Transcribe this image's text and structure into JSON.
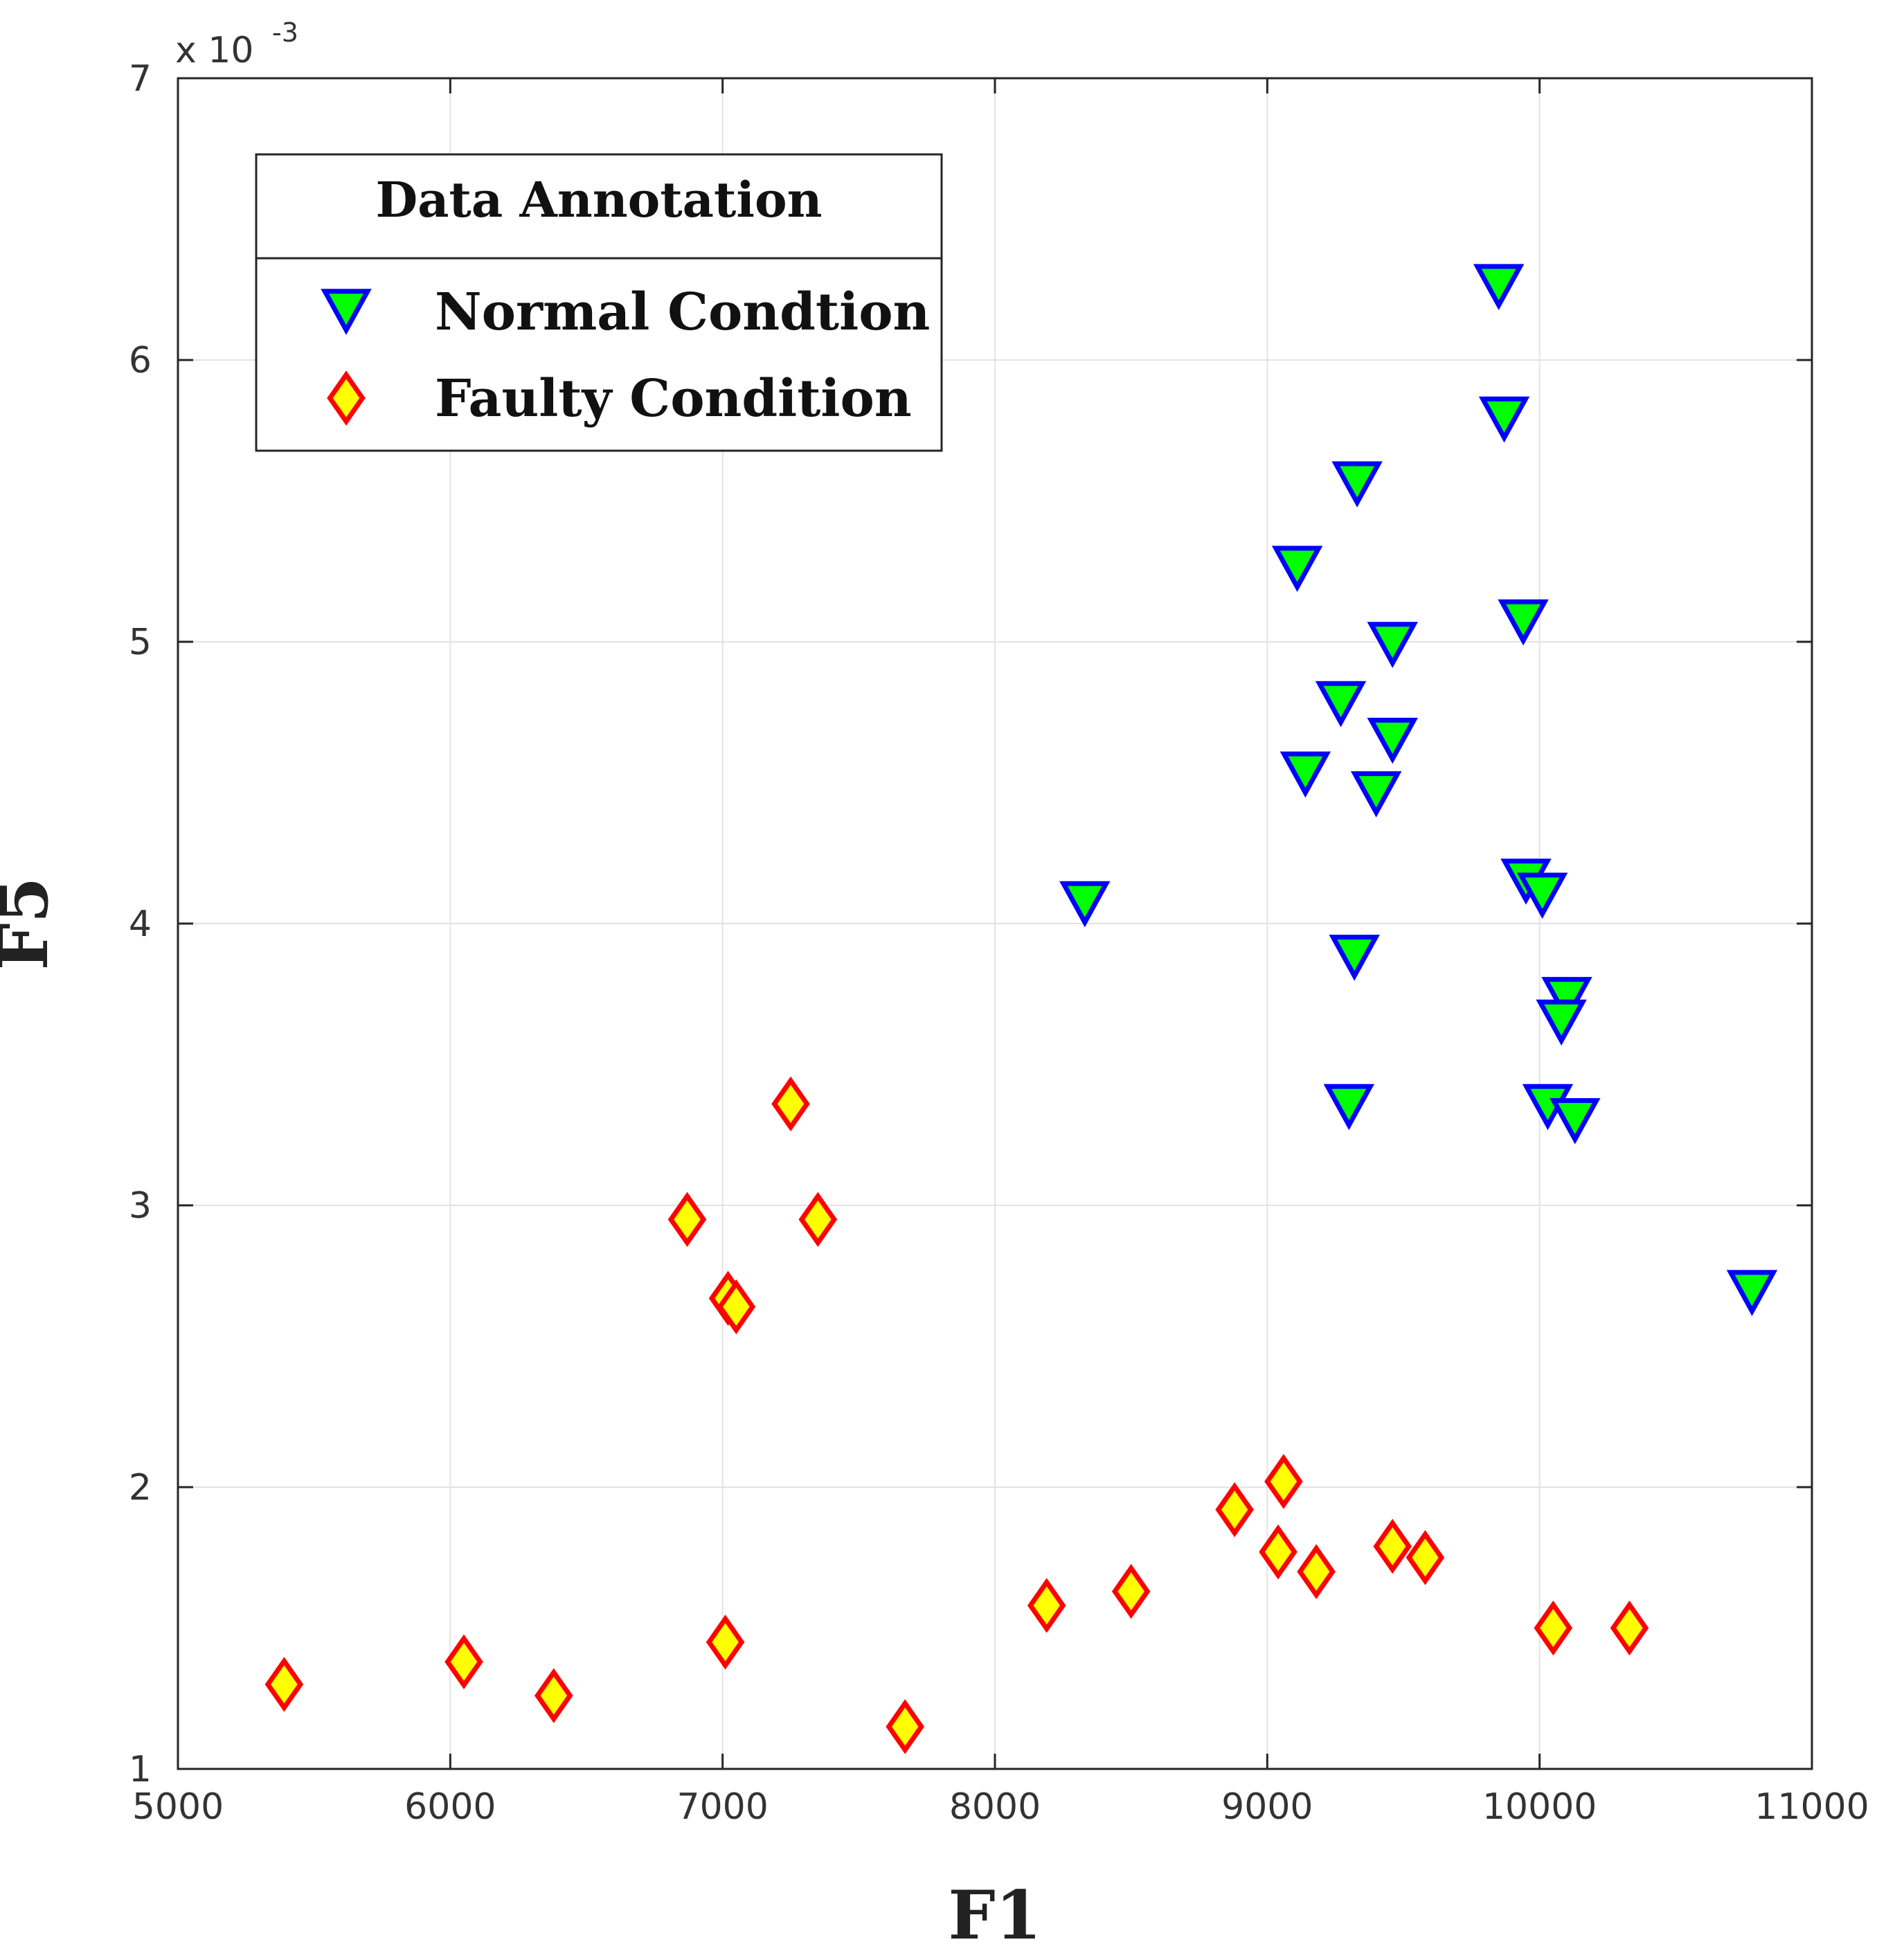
{
  "chart_data": {
    "type": "scatter",
    "title": "",
    "xlabel": "F1",
    "ylabel": "F5",
    "xlim": [
      5000,
      11000
    ],
    "ylim": [
      1,
      7
    ],
    "xticks": [
      5000,
      6000,
      7000,
      8000,
      9000,
      10000,
      11000
    ],
    "yticks": [
      1,
      2,
      3,
      4,
      5,
      6,
      7
    ],
    "y_multiplier_base": "x 10",
    "y_multiplier_exp": "-3",
    "grid": true,
    "legend": {
      "title": "Data Annotation",
      "placement": "top-left"
    },
    "series": [
      {
        "name": "Normal Condtion",
        "marker": "triangle-down",
        "fill": "#00ff00",
        "stroke": "#0000ff",
        "points": [
          [
            9850,
            6.26
          ],
          [
            9870,
            5.79
          ],
          [
            9330,
            5.56
          ],
          [
            9110,
            5.26
          ],
          [
            9940,
            5.07
          ],
          [
            9460,
            4.99
          ],
          [
            9270,
            4.78
          ],
          [
            9460,
            4.65
          ],
          [
            9140,
            4.53
          ],
          [
            9400,
            4.46
          ],
          [
            8330,
            4.07
          ],
          [
            9950,
            4.15
          ],
          [
            10010,
            4.1
          ],
          [
            9320,
            3.88
          ],
          [
            10100,
            3.73
          ],
          [
            10080,
            3.65
          ],
          [
            9300,
            3.35
          ],
          [
            10030,
            3.35
          ],
          [
            10130,
            3.3
          ],
          [
            10780,
            2.69
          ]
        ]
      },
      {
        "name": "Faulty Condition",
        "marker": "diamond",
        "fill": "#ffff00",
        "stroke": "#ff0000",
        "points": [
          [
            7250,
            3.36
          ],
          [
            6870,
            2.95
          ],
          [
            7350,
            2.95
          ],
          [
            7020,
            2.67
          ],
          [
            7050,
            2.64
          ],
          [
            9060,
            2.02
          ],
          [
            8880,
            1.92
          ],
          [
            9040,
            1.77
          ],
          [
            9180,
            1.7
          ],
          [
            9460,
            1.79
          ],
          [
            9580,
            1.75
          ],
          [
            8500,
            1.63
          ],
          [
            8190,
            1.58
          ],
          [
            10050,
            1.5
          ],
          [
            10330,
            1.5
          ],
          [
            7010,
            1.45
          ],
          [
            6050,
            1.38
          ],
          [
            6380,
            1.26
          ],
          [
            5390,
            1.3
          ],
          [
            7670,
            1.15
          ]
        ]
      }
    ]
  }
}
